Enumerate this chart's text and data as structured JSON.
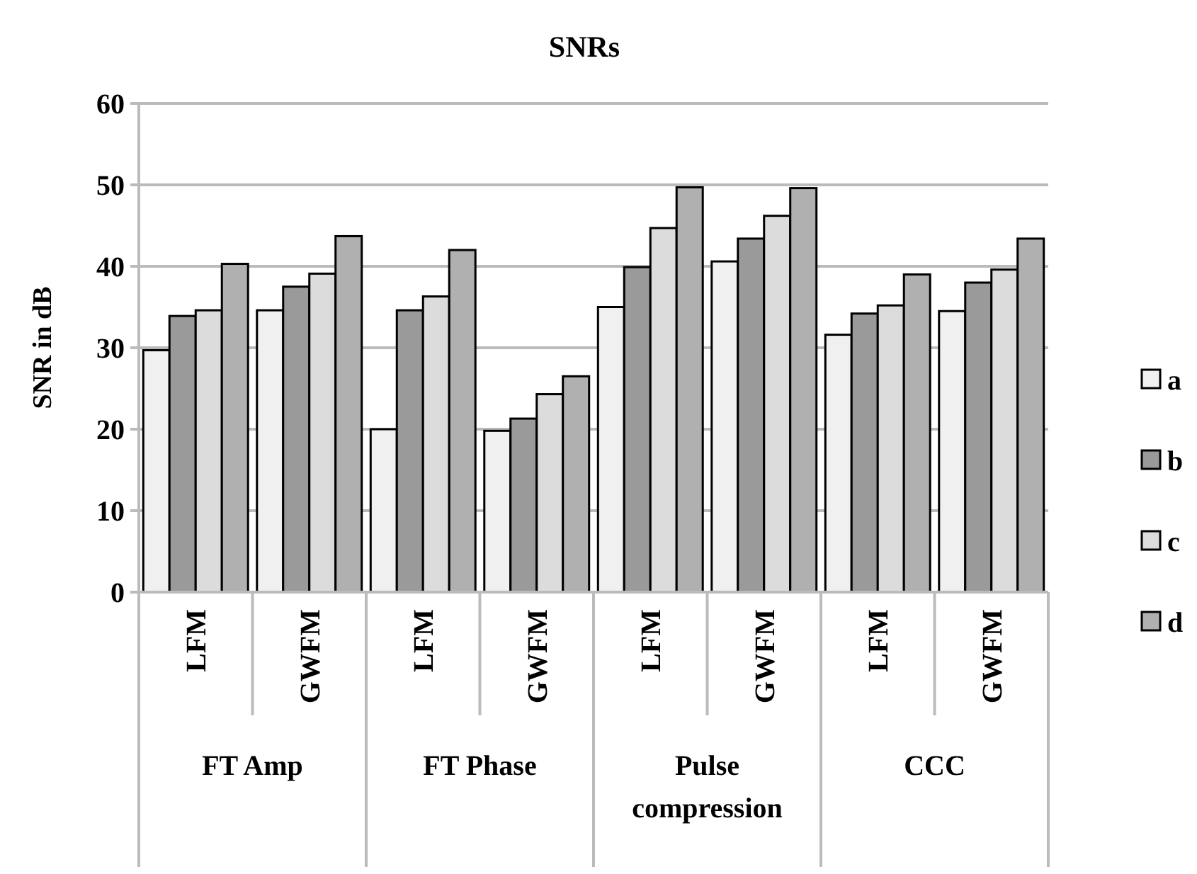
{
  "chart_data": {
    "type": "bar",
    "title": "SNRs",
    "ylabel": "SNR in dB",
    "categories": [
      "LFM",
      "GWFM",
      "LFM",
      "GWFM",
      "LFM",
      "GWFM",
      "LFM",
      "GWFM"
    ],
    "series": [
      {
        "name": "a",
        "color": "#f0f0f0",
        "values": [
          29.7,
          34.6,
          20,
          19.8,
          35,
          40.6,
          31.6,
          34.5
        ]
      },
      {
        "name": "b",
        "color": "#9a9a9a",
        "values": [
          33.9,
          37.5,
          34.6,
          21.3,
          39.9,
          43.4,
          34.2,
          38
        ]
      },
      {
        "name": "c",
        "color": "#dcdcdc",
        "values": [
          34.6,
          39.1,
          36.3,
          24.3,
          44.7,
          46.2,
          35.2,
          39.6
        ]
      },
      {
        "name": "d",
        "color": "#b0b0b0",
        "values": [
          40.3,
          43.7,
          42,
          26.5,
          49.7,
          49.6,
          39,
          43.4
        ]
      }
    ],
    "annotations": [
      "FT Amp",
      "FT Phase",
      "Pulse compression",
      "CCC"
    ],
    "ylim": [
      0,
      60
    ],
    "yticks": [
      0,
      10,
      20,
      30,
      40,
      50,
      60
    ],
    "grid": "y",
    "legend": "right"
  }
}
